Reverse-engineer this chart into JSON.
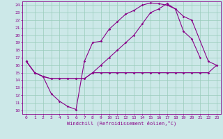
{
  "xlabel": "Windchill (Refroidissement éolien,°C)",
  "xlim": [
    -0.5,
    23.5
  ],
  "ylim": [
    9.5,
    24.5
  ],
  "xticks": [
    0,
    1,
    2,
    3,
    4,
    5,
    6,
    7,
    8,
    9,
    10,
    11,
    12,
    13,
    14,
    15,
    16,
    17,
    18,
    19,
    20,
    21,
    22,
    23
  ],
  "yticks": [
    10,
    11,
    12,
    13,
    14,
    15,
    16,
    17,
    18,
    19,
    20,
    21,
    22,
    23,
    24
  ],
  "bg_color": "#cce8e8",
  "line_color": "#880088",
  "grid_color": "#99ccbb",
  "line1_x": [
    0,
    1,
    2,
    3,
    4,
    5,
    6,
    7,
    8,
    9,
    10,
    11,
    12,
    13,
    14,
    15,
    16,
    17,
    18,
    19,
    20,
    21,
    22,
    23
  ],
  "line1_y": [
    16.5,
    15.0,
    14.5,
    14.2,
    14.2,
    14.2,
    14.2,
    14.2,
    15.0,
    15.0,
    15.0,
    15.0,
    15.0,
    15.0,
    15.0,
    15.0,
    15.0,
    15.0,
    15.0,
    15.0,
    15.0,
    15.0,
    15.0,
    16.0
  ],
  "line2_x": [
    0,
    1,
    2,
    3,
    4,
    5,
    6,
    7,
    8,
    9,
    10,
    11,
    12,
    13,
    14,
    15,
    16,
    17,
    18,
    19,
    20,
    21
  ],
  "line2_y": [
    16.5,
    15.0,
    14.5,
    12.2,
    11.2,
    10.5,
    10.1,
    16.5,
    19.0,
    19.2,
    20.8,
    21.8,
    22.8,
    23.3,
    24.0,
    24.3,
    24.2,
    24.0,
    23.5,
    20.5,
    19.5,
    17.0
  ],
  "line3_x": [
    0,
    1,
    2,
    3,
    4,
    5,
    6,
    7,
    8,
    9,
    10,
    11,
    12,
    13,
    14,
    15,
    16,
    17,
    18,
    19,
    20,
    22,
    23
  ],
  "line3_y": [
    16.5,
    15.0,
    14.5,
    14.2,
    14.2,
    14.2,
    14.2,
    14.2,
    15.0,
    16.0,
    17.0,
    18.0,
    19.0,
    20.0,
    21.5,
    23.0,
    23.5,
    24.2,
    23.5,
    22.5,
    22.0,
    16.5,
    16.0
  ]
}
